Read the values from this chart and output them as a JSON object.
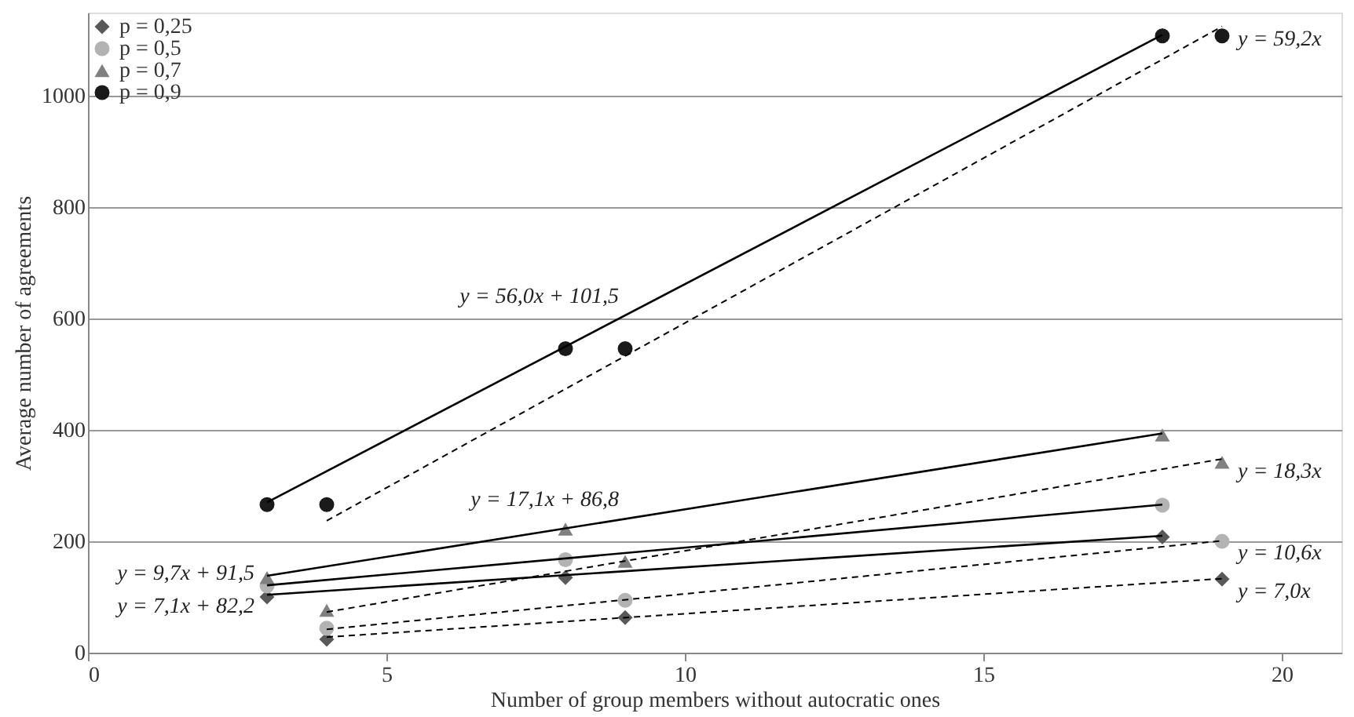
{
  "chart_data": {
    "type": "scatter",
    "xlabel": "Number of group members without autocratic ones",
    "ylabel": "Average number of agreements",
    "x": [
      3,
      4,
      8,
      9,
      18,
      19
    ],
    "series": [
      {
        "name": "p = 0,25",
        "color": "#595959",
        "marker": "diamond",
        "values": [
          100,
          24,
          135,
          63,
          208,
          132
        ]
      },
      {
        "name": "p = 0,5",
        "color": "#b3b3b3",
        "marker": "circle",
        "values": [
          120,
          44,
          167,
          94,
          265,
          200
        ]
      },
      {
        "name": "p = 0,7",
        "color": "#808080",
        "marker": "triangle",
        "values": [
          135,
          76,
          222,
          164,
          391,
          342
        ]
      },
      {
        "name": "p = 0,9",
        "color": "#1a1a1a",
        "marker": "circle",
        "values": [
          266,
          266,
          546,
          546,
          1108,
          1108
        ]
      },
      {
        "type": "line",
        "color": "#000000",
        "line_style": "solid",
        "marker": "none",
        "x": [
          3,
          18
        ],
        "values": [
          104,
          210
        ]
      },
      {
        "type": "line",
        "color": "#000000",
        "line_style": "solid",
        "marker": "none",
        "x": [
          3,
          18
        ],
        "values": [
          121,
          266
        ]
      },
      {
        "type": "line",
        "color": "#000000",
        "line_style": "solid",
        "marker": "none",
        "x": [
          3,
          18
        ],
        "values": [
          138,
          394
        ]
      },
      {
        "type": "line",
        "color": "#000000",
        "line_style": "solid",
        "marker": "none",
        "x": [
          3,
          18
        ],
        "values": [
          270,
          1110
        ]
      },
      {
        "type": "line",
        "color": "#000000",
        "line_style": "dashed",
        "marker": "none",
        "x": [
          4,
          19
        ],
        "values": [
          28,
          133
        ]
      },
      {
        "type": "line",
        "color": "#000000",
        "line_style": "dashed",
        "marker": "none",
        "x": [
          4,
          19
        ],
        "values": [
          42,
          201
        ]
      },
      {
        "type": "line",
        "color": "#000000",
        "line_style": "dashed",
        "marker": "none",
        "x": [
          4,
          19
        ],
        "values": [
          73,
          348
        ]
      },
      {
        "type": "line",
        "color": "#000000",
        "line_style": "dashed",
        "marker": "none",
        "x": [
          4,
          19
        ],
        "values": [
          237,
          1125
        ]
      }
    ],
    "annotations": [
      {
        "text": "y = 56,0x + 101,5",
        "x": 9,
        "y": 606
      },
      {
        "text": "y = 59,2x",
        "x": 19,
        "y": 1125
      },
      {
        "text": "y = 17,1x + 86,8",
        "x": 9,
        "y": 241
      },
      {
        "text": "y = 18,3x",
        "x": 19,
        "y": 348
      },
      {
        "text": "y = 10,6x",
        "x": 19,
        "y": 201
      },
      {
        "text": "y = 7,0x",
        "x": 19,
        "y": 133
      },
      {
        "text": "y = 9,7x + 91,5",
        "x": 3,
        "y": 121
      },
      {
        "text": "y = 7,1x + 82,2",
        "x": 3,
        "y": 104
      }
    ],
    "xlim": [
      0,
      21
    ],
    "xticks": [
      0,
      5,
      10,
      15,
      20
    ],
    "ylim": [
      0,
      1150
    ],
    "yticks": [
      0,
      200,
      400,
      600,
      800,
      1000
    ],
    "grid": "y",
    "legend": "top left"
  }
}
